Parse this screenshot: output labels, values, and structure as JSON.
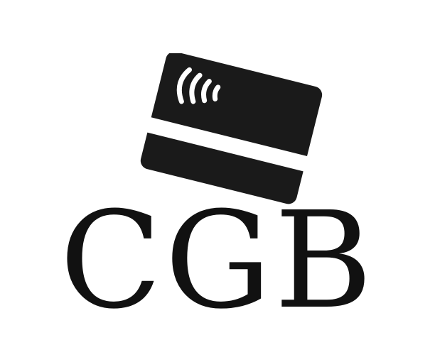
{
  "logo": {
    "wordmark": "CGB",
    "icon": "contactless-card-icon",
    "colors": {
      "background": "#ffffff",
      "ink": "#111111",
      "card": "#1a1a1a"
    }
  }
}
